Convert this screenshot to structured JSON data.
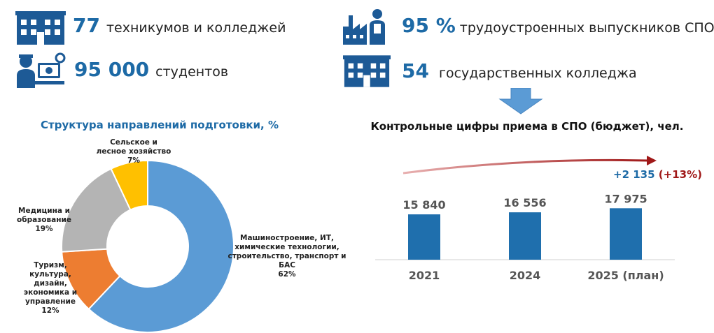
{
  "stats": {
    "colleges": {
      "number": "77",
      "text": "техникумов и колледжей"
    },
    "students": {
      "number": "95 000",
      "text": "студентов"
    },
    "employed": {
      "number": "95 %",
      "text": "трудоустроенных выпускников СПО"
    },
    "state_colleges": {
      "number": "54",
      "text": "государственных колледжа"
    }
  },
  "colors": {
    "brand_blue": "#1d6aa6",
    "dark_red": "#a01818",
    "icon_blue": "#1d5a96"
  },
  "icons": [
    "building-icon",
    "student-computer-icon",
    "factory-worker-icon",
    "arrow-down-icon",
    "trend-arrow-icon"
  ],
  "chart_data": [
    {
      "type": "pie",
      "title": "Структура направлений подготовки, %",
      "slices": [
        {
          "label": "Машиностроение, ИТ, химические технологии, строительство, транспорт и БАС",
          "value": 62,
          "value_label": "62%",
          "color": "#5b9bd5"
        },
        {
          "label": "Туризм, культура, дизайн, экономика и управление",
          "value": 12,
          "value_label": "12%",
          "color": "#ed7d31"
        },
        {
          "label": "Медицина и образование",
          "value": 19,
          "value_label": "19%",
          "color": "#b4b4b4"
        },
        {
          "label": "Сельское и лесное хозяйство",
          "value": 7,
          "value_label": "7%",
          "color": "#ffc000"
        }
      ]
    },
    {
      "type": "bar",
      "title": "Контрольные цифры приема в СПО (бюджет), чел.",
      "categories": [
        "2021",
        "2024",
        "2025 (план)"
      ],
      "values": [
        15840,
        16556,
        17975
      ],
      "value_labels": [
        "15 840",
        "16 556",
        "17 975"
      ],
      "bar_color": "#1f6fad",
      "annotation": {
        "delta": "+2 135",
        "percent": "(+13%)"
      }
    }
  ]
}
